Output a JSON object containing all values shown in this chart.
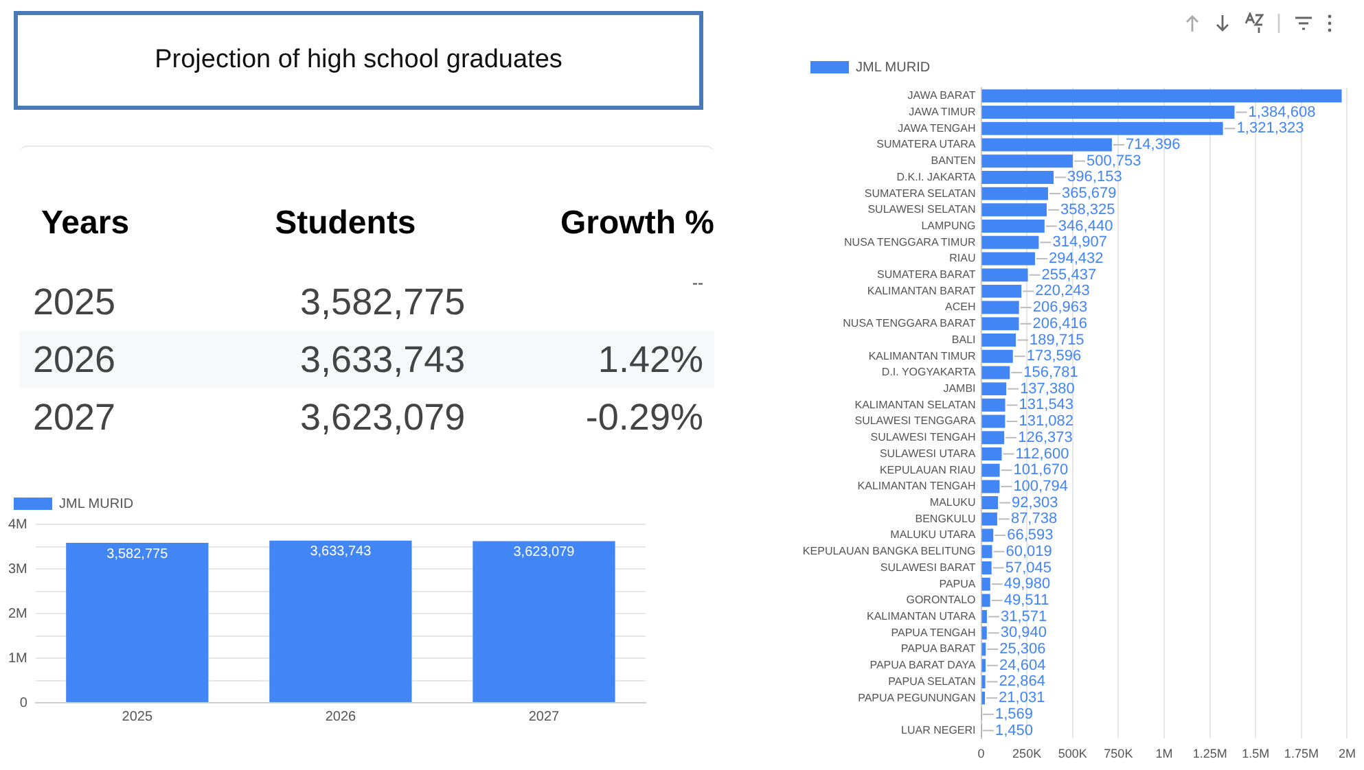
{
  "chart_data": [
    {
      "type": "other",
      "title": "Projection of high school graduates",
      "annotations": [
        "Years",
        "Students",
        "Growth %",
        "2025",
        "3,582,775",
        "--",
        "2026",
        "3,633,743",
        "1.42%",
        "2027",
        "3,623,079",
        "-0.29%"
      ]
    },
    {
      "type": "bar",
      "categories": [
        "2025",
        "2026",
        "2027"
      ],
      "series": [
        {
          "name": "JML MURID",
          "color": "#4285f4",
          "values": [
            3582775,
            3633743,
            3623079
          ],
          "value_labels": [
            "3,582,775",
            "3,633,743",
            "3,623,079"
          ]
        }
      ],
      "ylim": [
        0,
        4000000
      ],
      "yticks": [
        0,
        {
          "value": 500000,
          "label": null
        },
        {
          "value": 1000000,
          "label": "1M"
        },
        {
          "value": 1500000,
          "label": null
        },
        {
          "value": 2000000,
          "label": "2M"
        },
        {
          "value": 2500000,
          "label": null
        },
        {
          "value": 3000000,
          "label": "3M"
        },
        {
          "value": 3500000,
          "label": null
        },
        {
          "value": 4000000,
          "label": "4M"
        }
      ],
      "grid": "y",
      "legend": "top left"
    },
    {
      "type": "bar",
      "orientation": "horizontal",
      "categories": [
        "JAWA BARAT",
        "JAWA TIMUR",
        "JAWA TENGAH",
        "SUMATERA UTARA",
        "BANTEN",
        "D.K.I. JAKARTA",
        "SUMATERA SELATAN",
        "SULAWESI SELATAN",
        "LAMPUNG",
        "NUSA TENGGARA TIMUR",
        "RIAU",
        "SUMATERA BARAT",
        "KALIMANTAN BARAT",
        "ACEH",
        "NUSA TENGGARA BARAT",
        "BALI",
        "KALIMANTAN TIMUR",
        "D.I. YOGYAKARTA",
        "JAMBI",
        "KALIMANTAN SELATAN",
        "SULAWESI TENGGARA",
        "SULAWESI TENGAH",
        "SULAWESI UTARA",
        "KEPULAUAN RIAU",
        "KALIMANTAN TENGAH",
        "MALUKU",
        "BENGKULU",
        "MALUKU UTARA",
        "KEPULAUAN BANGKA BELITUNG",
        "SULAWESI BARAT",
        "PAPUA",
        "GORONTALO",
        "KALIMANTAN UTARA",
        "PAPUA TENGAH",
        "PAPUA BARAT",
        "PAPUA BARAT DAYA",
        "PAPUA SELATAN",
        "PAPUA PEGUNUNGAN",
        null,
        "LUAR NEGERI"
      ],
      "series": [
        {
          "name": "JML MURID",
          "color": "#4285f4",
          "values": [
            1970000,
            1384608,
            1321323,
            714396,
            500753,
            396153,
            365679,
            358325,
            346440,
            314907,
            294432,
            255437,
            220243,
            206963,
            206416,
            189715,
            173596,
            156781,
            137380,
            131543,
            131082,
            126373,
            112600,
            101670,
            100794,
            92303,
            87738,
            66593,
            60019,
            57045,
            49980,
            49511,
            31571,
            30940,
            25306,
            24604,
            22864,
            21031,
            1569,
            1450
          ],
          "value_labels": [
            null,
            "1,384,608",
            "1,321,323",
            "714,396",
            "500,753",
            "396,153",
            "365,679",
            "358,325",
            "346,440",
            "314,907",
            "294,432",
            "255,437",
            "220,243",
            "206,963",
            "206,416",
            "189,715",
            "173,596",
            "156,781",
            "137,380",
            "131,543",
            "131,082",
            "126,373",
            "112,600",
            "101,670",
            "100,794",
            "92,303",
            "87,738",
            "66,593",
            "60,019",
            "57,045",
            "49,980",
            "49,511",
            "31,571",
            "30,940",
            "25,306",
            "24,604",
            "22,864",
            "21,031",
            "1,569",
            "1,450"
          ]
        }
      ],
      "xlim": [
        0,
        2000000
      ],
      "xticks": [
        0,
        {
          "value": 250000,
          "label": "250K"
        },
        {
          "value": 500000,
          "label": "500K"
        },
        {
          "value": 750000,
          "label": "750K"
        },
        {
          "value": 1000000,
          "label": "1M"
        },
        {
          "value": 1250000,
          "label": "1.25M"
        },
        {
          "value": 1500000,
          "label": "1.5M"
        },
        {
          "value": 1750000,
          "label": "1.75M"
        },
        {
          "value": 2000000,
          "label": "2M"
        }
      ],
      "grid": "x",
      "legend": "top left"
    }
  ]
}
